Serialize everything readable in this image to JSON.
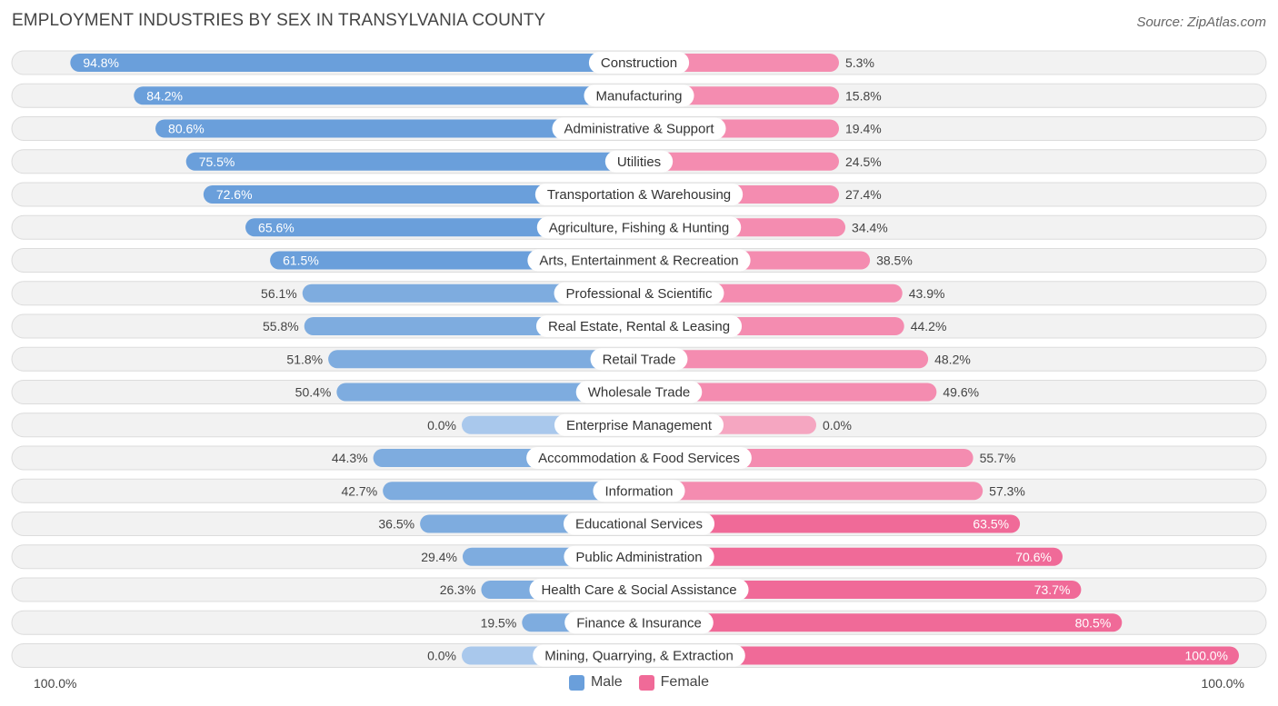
{
  "header": {
    "title": "EMPLOYMENT INDUSTRIES BY SEX IN TRANSYLVANIA COUNTY",
    "source": "Source: ZipAtlas.com"
  },
  "colors": {
    "male": "#6a9fdb",
    "male_light": "#a9c8ec",
    "female": "#f06a98",
    "female_light": "#f5a6c1",
    "row_bg": "#f2f2f2",
    "row_border": "#dcdcdc"
  },
  "legend": {
    "male_label": "Male",
    "female_label": "Female"
  },
  "axis": {
    "left_label": "100.0%",
    "right_label": "100.0%"
  },
  "chart_data": {
    "type": "bar",
    "orientation": "horizontal-diverging",
    "title": "EMPLOYMENT INDUSTRIES BY SEX IN TRANSYLVANIA COUNTY",
    "xlim": [
      -100,
      100
    ],
    "categories": [
      "Construction",
      "Manufacturing",
      "Administrative & Support",
      "Utilities",
      "Transportation & Warehousing",
      "Agriculture, Fishing & Hunting",
      "Arts, Entertainment & Recreation",
      "Professional & Scientific",
      "Real Estate, Rental & Leasing",
      "Retail Trade",
      "Wholesale Trade",
      "Enterprise Management",
      "Accommodation & Food Services",
      "Information",
      "Educational Services",
      "Public Administration",
      "Health Care & Social Assistance",
      "Finance & Insurance",
      "Mining, Quarrying, & Extraction"
    ],
    "series": [
      {
        "name": "Male",
        "values": [
          94.8,
          84.2,
          80.6,
          75.5,
          72.6,
          65.6,
          61.5,
          56.1,
          55.8,
          51.8,
          50.4,
          0.0,
          44.3,
          42.7,
          36.5,
          29.4,
          26.3,
          19.5,
          0.0
        ],
        "labels": [
          "94.8%",
          "84.2%",
          "80.6%",
          "75.5%",
          "72.6%",
          "65.6%",
          "61.5%",
          "56.1%",
          "55.8%",
          "51.8%",
          "50.4%",
          "0.0%",
          "44.3%",
          "42.7%",
          "36.5%",
          "29.4%",
          "26.3%",
          "19.5%",
          "0.0%"
        ]
      },
      {
        "name": "Female",
        "values": [
          5.3,
          15.8,
          19.4,
          24.5,
          27.4,
          34.4,
          38.5,
          43.9,
          44.2,
          48.2,
          49.6,
          0.0,
          55.7,
          57.3,
          63.5,
          70.6,
          73.7,
          80.5,
          100.0
        ],
        "labels": [
          "5.3%",
          "15.8%",
          "19.4%",
          "24.5%",
          "27.4%",
          "34.4%",
          "38.5%",
          "43.9%",
          "44.2%",
          "48.2%",
          "49.6%",
          "0.0%",
          "55.7%",
          "57.3%",
          "63.5%",
          "70.6%",
          "73.7%",
          "80.5%",
          "100.0%"
        ]
      }
    ]
  }
}
